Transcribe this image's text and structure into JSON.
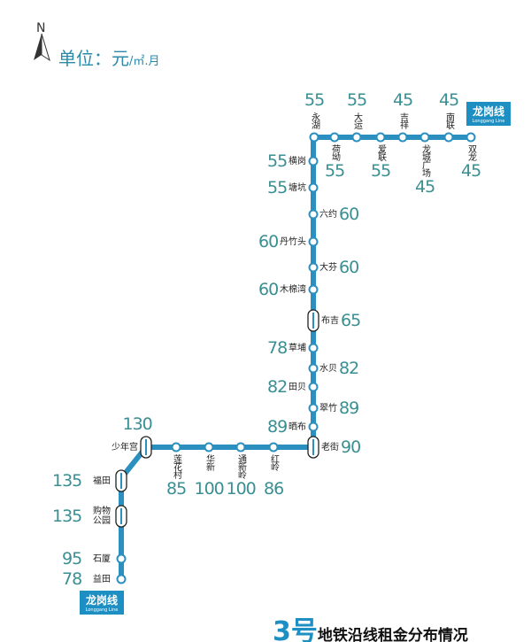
{
  "header": {
    "north_label": "N",
    "unit_label": "单位：元",
    "unit_suffix": "/㎡.月"
  },
  "line_badge": {
    "name": "龙岗线",
    "english": "Longgang Line"
  },
  "title": {
    "number": "3号",
    "text": "地铁沿线租金分布情况"
  },
  "colors": {
    "line": "#2b8fbf",
    "rent": "#3a8f92",
    "badge": "#1e8fc2"
  },
  "stations": [
    {
      "name": "双龙",
      "rent": "45"
    },
    {
      "name": "南联",
      "rent": "45"
    },
    {
      "name": "龙城广场",
      "rent": "45"
    },
    {
      "name": "吉祥",
      "rent": "45"
    },
    {
      "name": "爱联",
      "rent": "55"
    },
    {
      "name": "大运",
      "rent": "55"
    },
    {
      "name": "荷坳",
      "rent": "55"
    },
    {
      "name": "永湖",
      "rent": "55"
    },
    {
      "name": "横岗",
      "rent": "55"
    },
    {
      "name": "塘坑",
      "rent": "55"
    },
    {
      "name": "六约",
      "rent": "60"
    },
    {
      "name": "丹竹头",
      "rent": "60"
    },
    {
      "name": "大芬",
      "rent": "60"
    },
    {
      "name": "木棉湾",
      "rent": "60"
    },
    {
      "name": "布吉",
      "rent": "65",
      "interchange": true
    },
    {
      "name": "草埔",
      "rent": "78"
    },
    {
      "name": "水贝",
      "rent": "82"
    },
    {
      "name": "田贝",
      "rent": "82"
    },
    {
      "name": "翠竹",
      "rent": "89"
    },
    {
      "name": "晒布",
      "rent": "89"
    },
    {
      "name": "老街",
      "rent": "90",
      "interchange": true
    },
    {
      "name": "红岭",
      "rent": "86"
    },
    {
      "name": "通新岭",
      "rent": "100"
    },
    {
      "name": "华新",
      "rent": "100"
    },
    {
      "name": "莲花村",
      "rent": "85"
    },
    {
      "name": "少年宫",
      "rent": "130",
      "interchange": true
    },
    {
      "name": "福田",
      "rent": "135",
      "interchange": true
    },
    {
      "name": "购物公园",
      "rent": "135",
      "interchange": true
    },
    {
      "name": "石厦",
      "rent": "95"
    },
    {
      "name": "益田",
      "rent": "78"
    }
  ]
}
